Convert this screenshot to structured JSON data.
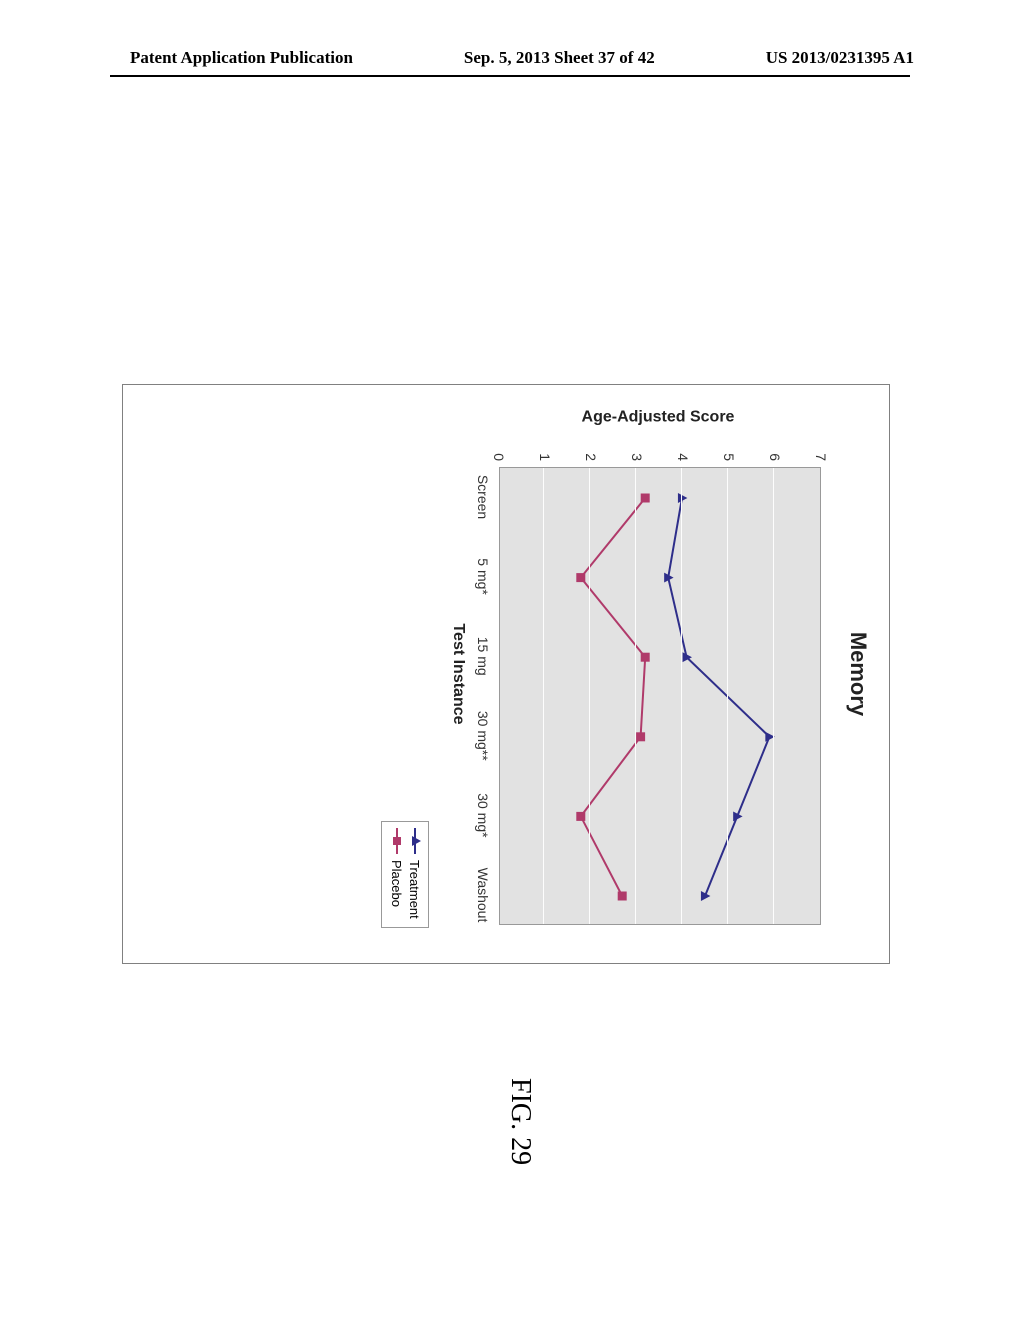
{
  "header": {
    "left": "Patent Application Publication",
    "center": "Sep. 5, 2013  Sheet 37 of 42",
    "right": "US 2013/0231395 A1"
  },
  "figure_caption": "FIG. 29",
  "chart": {
    "type": "line",
    "title": "Memory",
    "x_axis_title": "Test Instance",
    "y_axis_title": "Age-Adjusted Score",
    "background_color": "#e2e2e2",
    "grid_color": "#fdfdfd",
    "ylim": [
      0,
      7
    ],
    "ytick_step": 1,
    "x_categories": [
      "Screen",
      "5 mg*",
      "15 mg",
      "30 mg**",
      "30 mg*",
      "Washout"
    ],
    "series": [
      {
        "name": "Treatment",
        "label": "Treatment",
        "color": "#2e2e8a",
        "marker": "triangle",
        "values": [
          4.0,
          3.7,
          4.1,
          5.9,
          5.2,
          4.5
        ]
      },
      {
        "name": "Placebo",
        "label": "Placebo",
        "color": "#b03a6a",
        "marker": "square",
        "values": [
          3.2,
          1.8,
          3.2,
          3.1,
          1.8,
          2.7
        ]
      }
    ],
    "title_fontsize": 22,
    "label_fontsize": 14,
    "axis_title_fontsize": 16,
    "line_width": 2,
    "marker_size": 9
  }
}
